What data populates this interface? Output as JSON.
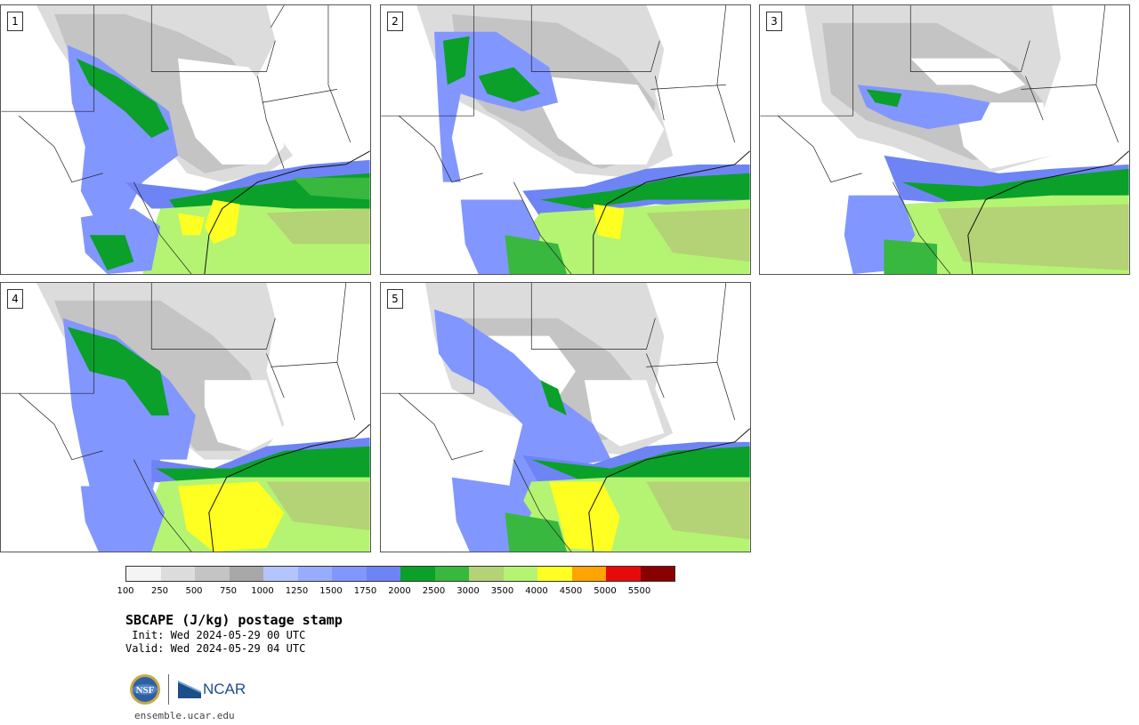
{
  "panels": [
    {
      "number": "1"
    },
    {
      "number": "2"
    },
    {
      "number": "3"
    },
    {
      "number": "4"
    },
    {
      "number": "5"
    }
  ],
  "colorbar": {
    "colors": [
      "#f4f4f4",
      "#dcdcdc",
      "#c4c4c4",
      "#a8a8a8",
      "#b4c4ff",
      "#98acff",
      "#8296ff",
      "#6e84f4",
      "#0aa02a",
      "#38b83e",
      "#b4d276",
      "#b4f472",
      "#ffff22",
      "#ffa400",
      "#e80a0a",
      "#8a0000"
    ],
    "tick_labels": [
      "100",
      "250",
      "500",
      "750",
      "1000",
      "1250",
      "1500",
      "1750",
      "2000",
      "2500",
      "3000",
      "3500",
      "4000",
      "4500",
      "5000",
      "5500"
    ]
  },
  "title": "SBCAPE (J/kg) postage stamp",
  "init": " Init: Wed 2024-05-29 00 UTC",
  "valid": "Valid: Wed 2024-05-29 04 UTC",
  "logos": {
    "nsf": "NSF",
    "ncar": "NCAR"
  },
  "url": "ensemble.ucar.edu"
}
